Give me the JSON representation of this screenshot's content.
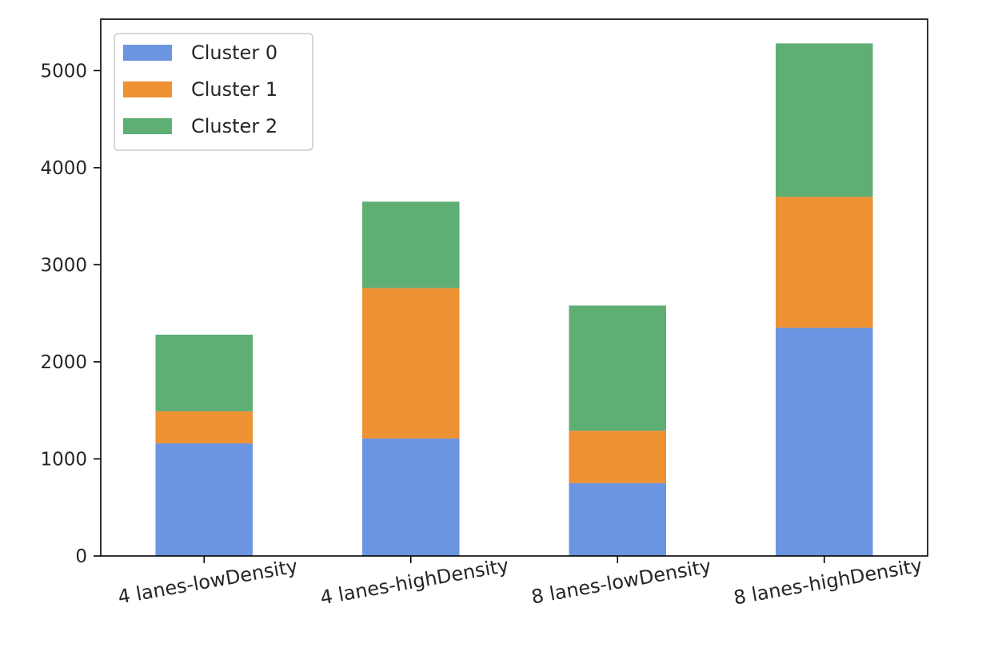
{
  "chart_data": {
    "type": "bar",
    "stacked": true,
    "categories": [
      "4 lanes-lowDensity",
      "4 lanes-highDensity",
      "8 lanes-lowDensity",
      "8 lanes-highDensity"
    ],
    "series": [
      {
        "name": "Cluster 0",
        "color": "#6b95e3",
        "values": [
          1160,
          1210,
          750,
          2350
        ]
      },
      {
        "name": "Cluster 1",
        "color": "#ee9133",
        "values": [
          330,
          1550,
          540,
          1350
        ]
      },
      {
        "name": "Cluster 2",
        "color": "#5fae74",
        "values": [
          790,
          890,
          1290,
          1580
        ]
      }
    ],
    "ylim": [
      0,
      5530
    ],
    "yticks": [
      0,
      1000,
      2000,
      3000,
      4000,
      5000
    ],
    "xlabel": "",
    "ylabel": "",
    "legend": "top-left",
    "grid": false
  }
}
